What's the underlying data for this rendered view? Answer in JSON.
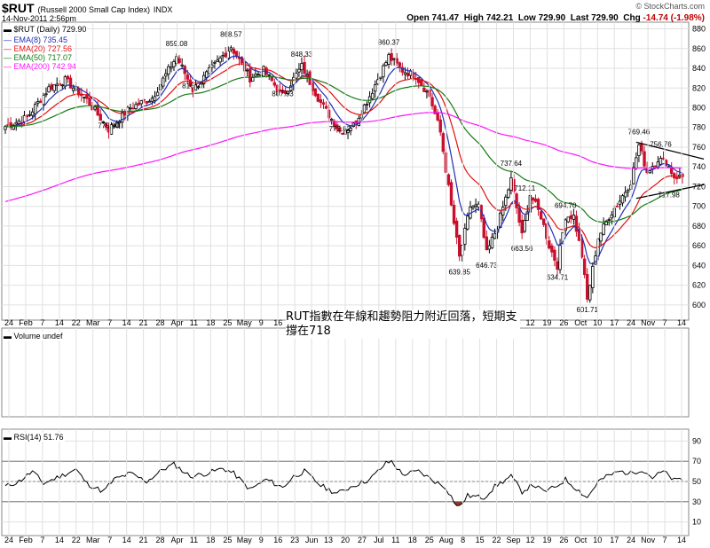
{
  "header": {
    "symbol": "$RUT",
    "symbol_desc": "(Russell 2000 Small Cap Index)",
    "exchange": "INDX",
    "date_time": "14-Nov-2011 2:56pm",
    "credit": "© StockCharts.com",
    "open_label": "Open",
    "open": "741.47",
    "high_label": "High",
    "high": "742.21",
    "low_label": "Low",
    "low": "729.90",
    "last_label": "Last",
    "last": "729.90",
    "chg_label": "Chg",
    "chg": "-14.74 (-1.98%)"
  },
  "legend": {
    "price": "$RUT (Daily) 729.90",
    "ema8": "EMA(8) 735.45",
    "ema20": "EMA(20) 727.56",
    "ema50": "EMA(50) 717.07",
    "ema200": "EMA(200) 742.94",
    "volume": "Volume undef",
    "rsi": "RSI(14) 51.76"
  },
  "annotation": "RUT指數在年線和趨勢阻力附近回落，短期支撐在718",
  "colors": {
    "ema8": "#1f2fb5",
    "ema20": "#e01010",
    "ema50": "#137a13",
    "ema200": "#ff10ff",
    "up_candle": "#000000",
    "down_candle": "#c8102e",
    "rsi_fill": "#8b3a2a",
    "grid": "#e0e0e0"
  },
  "chart_data": [
    {
      "type": "candlestick",
      "title": "$RUT (Russell 2000 Small Cap Index)",
      "y_ticks": [
        600,
        620,
        640,
        660,
        680,
        700,
        720,
        740,
        760,
        780,
        800,
        820,
        840,
        860,
        880
      ],
      "ylim": [
        590,
        885
      ],
      "x_tick_labels": [
        "24",
        "Feb",
        "7",
        "14",
        "22",
        "Mar",
        "7",
        "14",
        "21",
        "28",
        "Apr",
        "11",
        "18",
        "25",
        "May",
        "9",
        "16",
        "23",
        "Jun",
        "13",
        "20",
        "27",
        "Jul",
        "11",
        "18",
        "25",
        "Aug",
        "8",
        "15",
        "22",
        "Sep",
        "12",
        "19",
        "26",
        "Oct",
        "10",
        "17",
        "24",
        "Nov",
        "7",
        "14"
      ],
      "price_labels": [
        {
          "text": "775.90",
          "value": 775.9,
          "day": 38
        },
        {
          "text": "859.08",
          "value": 859.08,
          "day": 63
        },
        {
          "text": "816.07",
          "value": 816.07,
          "day": 69
        },
        {
          "text": "868.57",
          "value": 868.57,
          "day": 83
        },
        {
          "text": "807.93",
          "value": 807.93,
          "day": 102
        },
        {
          "text": "848.33",
          "value": 848.33,
          "day": 109
        },
        {
          "text": "772.62",
          "value": 772.62,
          "day": 123
        },
        {
          "text": "860.37",
          "value": 860.37,
          "day": 141
        },
        {
          "text": "639.85",
          "value": 639.85,
          "day": 167
        },
        {
          "text": "646.73",
          "value": 646.73,
          "day": 177
        },
        {
          "text": "737.64",
          "value": 737.64,
          "day": 186
        },
        {
          "text": "712.11",
          "value": 712.11,
          "day": 191
        },
        {
          "text": "663.56",
          "value": 663.56,
          "day": 190
        },
        {
          "text": "694.70",
          "value": 694.7,
          "day": 206
        },
        {
          "text": "634.71",
          "value": 634.71,
          "day": 203
        },
        {
          "text": "601.71",
          "value": 601.71,
          "day": 214
        },
        {
          "text": "769.46",
          "value": 769.46,
          "day": 233
        },
        {
          "text": "756.76",
          "value": 756.76,
          "day": 241
        },
        {
          "text": "717.98",
          "value": 717.98,
          "day": 244
        }
      ],
      "anchor_closes": [
        [
          0,
          781
        ],
        [
          8,
          790
        ],
        [
          16,
          820
        ],
        [
          22,
          828
        ],
        [
          30,
          808
        ],
        [
          38,
          778
        ],
        [
          46,
          800
        ],
        [
          54,
          810
        ],
        [
          63,
          852
        ],
        [
          69,
          818
        ],
        [
          76,
          840
        ],
        [
          83,
          862
        ],
        [
          90,
          830
        ],
        [
          95,
          838
        ],
        [
          102,
          812
        ],
        [
          109,
          842
        ],
        [
          116,
          805
        ],
        [
          123,
          776
        ],
        [
          128,
          782
        ],
        [
          134,
          812
        ],
        [
          141,
          852
        ],
        [
          146,
          838
        ],
        [
          151,
          832
        ],
        [
          156,
          812
        ],
        [
          160,
          775
        ],
        [
          164,
          700
        ],
        [
          167,
          648
        ],
        [
          171,
          700
        ],
        [
          174,
          700
        ],
        [
          177,
          652
        ],
        [
          181,
          680
        ],
        [
          186,
          727
        ],
        [
          190,
          670
        ],
        [
          193,
          712
        ],
        [
          197,
          690
        ],
        [
          200,
          660
        ],
        [
          203,
          640
        ],
        [
          206,
          690
        ],
        [
          209,
          690
        ],
        [
          212,
          650
        ],
        [
          214,
          605
        ],
        [
          218,
          668
        ],
        [
          222,
          690
        ],
        [
          226,
          706
        ],
        [
          230,
          725
        ],
        [
          233,
          762
        ],
        [
          236,
          735
        ],
        [
          240,
          748
        ],
        [
          243,
          745
        ],
        [
          246,
          730
        ]
      ],
      "series": [
        {
          "name": "EMA(8)",
          "type": "line",
          "color": "#1f2fb5",
          "period": 8
        },
        {
          "name": "EMA(20)",
          "type": "line",
          "color": "#e01010",
          "period": 20
        },
        {
          "name": "EMA(50)",
          "type": "line",
          "color": "#137a13",
          "period": 50
        },
        {
          "name": "EMA(200)",
          "type": "line",
          "color": "#ff10ff",
          "period": 200,
          "start": 704
        }
      ],
      "trendlines": [
        {
          "from": [
            232,
            765
          ],
          "to": [
            251,
            748
          ]
        },
        {
          "from": [
            232,
            708
          ],
          "to": [
            251,
            722
          ]
        }
      ]
    },
    {
      "type": "line",
      "title": "RSI(14)",
      "y_ticks": [
        10,
        30,
        50,
        70,
        90
      ],
      "ylim": [
        0,
        100
      ],
      "reference_lines": [
        30,
        50,
        70
      ],
      "last_value": 51.76,
      "anchors": [
        [
          0,
          45
        ],
        [
          5,
          50
        ],
        [
          10,
          60
        ],
        [
          14,
          48
        ],
        [
          20,
          55
        ],
        [
          26,
          62
        ],
        [
          30,
          48
        ],
        [
          36,
          40
        ],
        [
          40,
          52
        ],
        [
          46,
          58
        ],
        [
          52,
          50
        ],
        [
          58,
          62
        ],
        [
          62,
          67
        ],
        [
          68,
          55
        ],
        [
          74,
          58
        ],
        [
          80,
          63
        ],
        [
          84,
          58
        ],
        [
          90,
          42
        ],
        [
          96,
          52
        ],
        [
          102,
          44
        ],
        [
          106,
          55
        ],
        [
          110,
          60
        ],
        [
          116,
          46
        ],
        [
          122,
          38
        ],
        [
          128,
          46
        ],
        [
          134,
          52
        ],
        [
          140,
          68
        ],
        [
          142,
          70
        ],
        [
          146,
          57
        ],
        [
          152,
          60
        ],
        [
          158,
          50
        ],
        [
          162,
          44
        ],
        [
          166,
          26
        ],
        [
          167,
          25
        ],
        [
          170,
          36
        ],
        [
          176,
          34
        ],
        [
          180,
          45
        ],
        [
          186,
          55
        ],
        [
          190,
          40
        ],
        [
          194,
          47
        ],
        [
          198,
          40
        ],
        [
          202,
          44
        ],
        [
          206,
          52
        ],
        [
          210,
          43
        ],
        [
          214,
          34
        ],
        [
          218,
          50
        ],
        [
          222,
          56
        ],
        [
          226,
          60
        ],
        [
          230,
          58
        ],
        [
          234,
          62
        ],
        [
          238,
          54
        ],
        [
          242,
          60
        ],
        [
          246,
          51
        ],
        [
          248,
          52
        ]
      ]
    }
  ]
}
